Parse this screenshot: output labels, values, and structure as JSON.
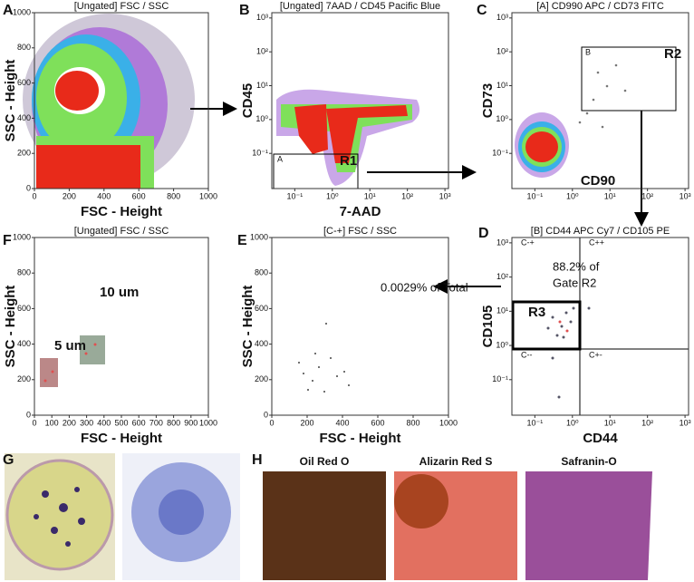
{
  "panels": [
    {
      "letter": "A",
      "title": "[Ungated] FSC / SSC",
      "x_label": "FSC - Height",
      "y_label": "SSC - Height",
      "x_ticks": [
        "0",
        "200",
        "400",
        "600",
        "800",
        "1000"
      ],
      "y_ticks": [
        "0",
        "200",
        "400",
        "600",
        "800",
        "1000"
      ],
      "annotations": []
    },
    {
      "letter": "B",
      "title": "[Ungated] 7AAD / CD45 Pacific Blue",
      "x_label": "7-AAD",
      "y_label": "CD45",
      "x_ticks": [
        "10⁻¹",
        "10⁰",
        "10¹",
        "10²",
        "10³"
      ],
      "y_ticks": [
        "10⁻¹",
        "10⁰",
        "10¹",
        "10²",
        "10³"
      ],
      "annotations": [
        "A",
        "R1"
      ]
    },
    {
      "letter": "C",
      "title": "[A] CD990 APC / CD73 FITC",
      "x_label": "CD90",
      "y_label": "CD73",
      "x_ticks": [
        "10⁻¹",
        "10⁰",
        "10¹",
        "10²",
        "10³"
      ],
      "y_ticks": [
        "10⁻¹",
        "10⁰",
        "10¹",
        "10²",
        "10³"
      ],
      "annotations": [
        "B",
        "R2"
      ]
    },
    {
      "letter": "D",
      "title": "[B] CD44 APC Cy7 / CD105 PE",
      "x_label": "CD44",
      "y_label": "CD105",
      "x_ticks": [
        "10⁻¹",
        "10⁰",
        "10¹",
        "10²",
        "10³"
      ],
      "y_ticks": [
        "10⁻¹",
        "10⁰",
        "10¹",
        "10²",
        "10³"
      ],
      "annotations": [
        "C-+",
        "C++",
        "C--",
        "C+-",
        "88.2% of",
        "Gate R2",
        "R3"
      ]
    },
    {
      "letter": "E",
      "title": "[C-+] FSC / SSC",
      "x_label": "FSC - Height",
      "y_label": "SSC - Height",
      "x_ticks": [
        "0",
        "200",
        "400",
        "600",
        "800",
        "1000"
      ],
      "y_ticks": [
        "0",
        "200",
        "400",
        "600",
        "800",
        "1000"
      ],
      "annotations": [
        "0.0029% of Total"
      ]
    },
    {
      "letter": "F",
      "title": "[Ungated] FSC / SSC",
      "x_label": "FSC - Height",
      "y_label": "SSC - Height",
      "x_ticks": [
        "0",
        "100",
        "200",
        "300",
        "400",
        "500",
        "600",
        "700",
        "800",
        "900",
        "1000"
      ],
      "y_ticks": [
        "0",
        "200",
        "400",
        "600",
        "800",
        "1000"
      ],
      "annotations": [
        "10 um",
        "5 um"
      ]
    }
  ],
  "photos": {
    "g_letter": "G",
    "h_letter": "H",
    "stains": [
      "Oil Red O",
      "Alizarin Red S",
      "Safranin-O"
    ]
  }
}
